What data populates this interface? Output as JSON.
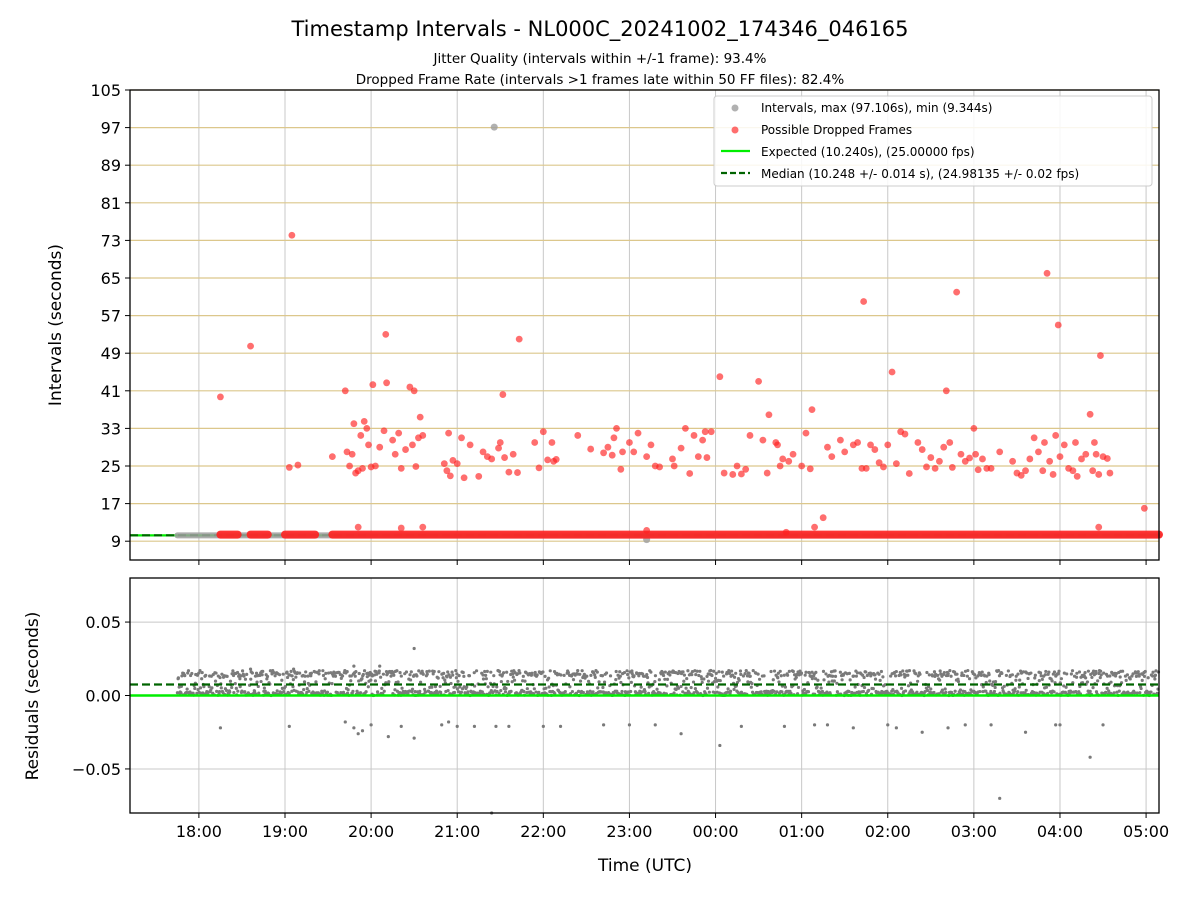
{
  "figure": {
    "title": "Timestamp Intervals - NL000C_20241002_174346_046165",
    "subtitle_line1": "Jitter Quality (intervals within +/-1 frame): 93.4%",
    "subtitle_line2": "Dropped Frame Rate (intervals >1 frames late within 50 FF files): 82.4%",
    "xlabel": "Time (UTC)",
    "x_ticks": [
      "18:00",
      "19:00",
      "20:00",
      "21:00",
      "22:00",
      "23:00",
      "00:00",
      "01:00",
      "02:00",
      "03:00",
      "04:00",
      "05:00"
    ]
  },
  "chart_data": [
    {
      "type": "scatter",
      "ylabel": "Intervals (seconds)",
      "ylim": [
        5,
        105
      ],
      "xlim_hours": [
        17.2,
        29.15
      ],
      "x_ticks_hours": [
        18,
        19,
        20,
        21,
        22,
        23,
        24,
        25,
        26,
        27,
        28,
        29
      ],
      "y_ticks": [
        9,
        17,
        25,
        33,
        41,
        49,
        57,
        65,
        73,
        81,
        89,
        97,
        105
      ],
      "grid": "x gray; y goldenrod",
      "legend_position": "upper-right",
      "legend": [
        "Intervals, max (97.106s), min (9.344s)",
        "Possible Dropped Frames",
        "Expected (10.240s), (25.00000 fps)",
        "Median (10.248 +/- 0.014 s), (24.98135 +/- 0.02 fps)"
      ],
      "series": [
        {
          "name": "Intervals, max (97.106s), min (9.344s)",
          "color": "#9e9e9e",
          "baseline_range_hours": [
            17.75,
            29.15
          ],
          "baseline_value": 10.25,
          "points": [
            [
              23.2,
              9.34
            ],
            [
              21.43,
              97.1
            ]
          ]
        },
        {
          "name": "Possible Dropped Frames",
          "color": "#ff2020",
          "baseline_segments_hours": [
            [
              18.25,
              18.45
            ],
            [
              18.6,
              18.8
            ],
            [
              19.0,
              19.35
            ],
            [
              19.55,
              29.15
            ]
          ],
          "baseline_value": 10.4,
          "points": [
            [
              18.25,
              39.7
            ],
            [
              18.6,
              50.5
            ],
            [
              19.08,
              74.1
            ],
            [
              19.05,
              24.7
            ],
            [
              19.15,
              25.2
            ],
            [
              19.55,
              27.0
            ],
            [
              19.7,
              41.0
            ],
            [
              19.72,
              28.0
            ],
            [
              19.75,
              25.0
            ],
            [
              19.78,
              27.5
            ],
            [
              19.8,
              34.0
            ],
            [
              19.82,
              23.5
            ],
            [
              19.85,
              24.0
            ],
            [
              19.88,
              31.5
            ],
            [
              19.9,
              24.5
            ],
            [
              19.92,
              34.5
            ],
            [
              19.95,
              33.0
            ],
            [
              19.97,
              29.5
            ],
            [
              20.0,
              24.8
            ],
            [
              20.02,
              42.3
            ],
            [
              20.05,
              25.0
            ],
            [
              20.1,
              29.0
            ],
            [
              20.15,
              32.5
            ],
            [
              20.17,
              53.0
            ],
            [
              20.18,
              42.7
            ],
            [
              20.25,
              30.5
            ],
            [
              20.28,
              27.5
            ],
            [
              20.32,
              32.0
            ],
            [
              20.35,
              24.5
            ],
            [
              20.4,
              28.5
            ],
            [
              20.45,
              41.8
            ],
            [
              20.48,
              29.5
            ],
            [
              20.5,
              41.0
            ],
            [
              20.52,
              24.9
            ],
            [
              20.55,
              31.0
            ],
            [
              20.57,
              35.4
            ],
            [
              20.6,
              31.5
            ],
            [
              20.6,
              12.0
            ],
            [
              19.85,
              12.0
            ],
            [
              20.35,
              11.8
            ],
            [
              20.85,
              25.5
            ],
            [
              20.88,
              24.0
            ],
            [
              20.9,
              32.0
            ],
            [
              20.92,
              22.9
            ],
            [
              20.95,
              26.2
            ],
            [
              21.0,
              25.5
            ],
            [
              21.05,
              31.0
            ],
            [
              21.08,
              22.5
            ],
            [
              21.15,
              29.5
            ],
            [
              21.25,
              22.8
            ],
            [
              21.3,
              28.0
            ],
            [
              21.35,
              27.0
            ],
            [
              21.4,
              26.5
            ],
            [
              21.48,
              28.8
            ],
            [
              21.5,
              30.0
            ],
            [
              21.53,
              40.2
            ],
            [
              21.55,
              26.8
            ],
            [
              21.6,
              23.7
            ],
            [
              21.65,
              27.5
            ],
            [
              21.7,
              23.6
            ],
            [
              21.72,
              52.0
            ],
            [
              21.9,
              30.0
            ],
            [
              21.95,
              24.6
            ],
            [
              22.0,
              32.3
            ],
            [
              22.05,
              26.3
            ],
            [
              22.1,
              30.0
            ],
            [
              22.12,
              26.0
            ],
            [
              22.15,
              26.4
            ],
            [
              22.4,
              31.5
            ],
            [
              22.55,
              28.6
            ],
            [
              22.7,
              27.8
            ],
            [
              22.75,
              29.0
            ],
            [
              22.8,
              27.3
            ],
            [
              22.82,
              31.0
            ],
            [
              22.85,
              33.0
            ],
            [
              22.9,
              24.3
            ],
            [
              22.92,
              28.0
            ],
            [
              23.0,
              30.0
            ],
            [
              23.05,
              28.0
            ],
            [
              23.1,
              32.0
            ],
            [
              23.2,
              27.0
            ],
            [
              23.25,
              29.5
            ],
            [
              23.3,
              25.0
            ],
            [
              23.35,
              24.8
            ],
            [
              23.5,
              26.5
            ],
            [
              23.52,
              25.0
            ],
            [
              23.6,
              28.8
            ],
            [
              23.65,
              33.0
            ],
            [
              23.7,
              23.4
            ],
            [
              23.75,
              31.5
            ],
            [
              23.8,
              27.0
            ],
            [
              23.85,
              30.5
            ],
            [
              23.88,
              32.3
            ],
            [
              23.9,
              26.8
            ],
            [
              23.95,
              32.3
            ],
            [
              24.05,
              44.0
            ],
            [
              24.1,
              23.5
            ],
            [
              24.2,
              23.2
            ],
            [
              24.25,
              25.0
            ],
            [
              24.3,
              23.3
            ],
            [
              24.35,
              24.3
            ],
            [
              24.4,
              31.5
            ],
            [
              24.5,
              43.0
            ],
            [
              24.55,
              30.5
            ],
            [
              24.6,
              23.5
            ],
            [
              24.62,
              35.9
            ],
            [
              24.7,
              30.0
            ],
            [
              24.72,
              29.5
            ],
            [
              24.75,
              25.0
            ],
            [
              24.78,
              26.5
            ],
            [
              24.85,
              26.0
            ],
            [
              24.9,
              27.5
            ],
            [
              25.0,
              25.0
            ],
            [
              25.05,
              32.0
            ],
            [
              25.1,
              24.4
            ],
            [
              25.12,
              37.0
            ],
            [
              25.15,
              12.0
            ],
            [
              25.25,
              14.0
            ],
            [
              25.3,
              29.0
            ],
            [
              25.35,
              27.0
            ],
            [
              25.45,
              30.5
            ],
            [
              25.5,
              28.0
            ],
            [
              25.6,
              29.5
            ],
            [
              25.65,
              30.0
            ],
            [
              25.7,
              24.5
            ],
            [
              25.72,
              60.0
            ],
            [
              25.75,
              24.5
            ],
            [
              25.8,
              29.5
            ],
            [
              25.85,
              28.5
            ],
            [
              25.9,
              25.7
            ],
            [
              25.95,
              24.8
            ],
            [
              26.0,
              29.5
            ],
            [
              26.05,
              45.0
            ],
            [
              26.1,
              25.5
            ],
            [
              26.15,
              32.3
            ],
            [
              26.2,
              31.8
            ],
            [
              26.25,
              23.4
            ],
            [
              26.35,
              30.0
            ],
            [
              26.4,
              28.5
            ],
            [
              26.45,
              24.8
            ],
            [
              26.5,
              26.8
            ],
            [
              26.55,
              24.5
            ],
            [
              26.6,
              26.0
            ],
            [
              26.65,
              29.0
            ],
            [
              26.68,
              41.0
            ],
            [
              26.72,
              30.0
            ],
            [
              26.75,
              24.7
            ],
            [
              26.8,
              62.0
            ],
            [
              26.85,
              27.5
            ],
            [
              26.9,
              26.0
            ],
            [
              26.95,
              26.7
            ],
            [
              27.0,
              33.0
            ],
            [
              27.02,
              27.5
            ],
            [
              27.05,
              24.2
            ],
            [
              27.1,
              26.5
            ],
            [
              27.15,
              24.5
            ],
            [
              27.2,
              24.5
            ],
            [
              27.3,
              28.0
            ],
            [
              27.45,
              26.0
            ],
            [
              27.5,
              23.5
            ],
            [
              27.55,
              23.0
            ],
            [
              27.6,
              24.0
            ],
            [
              27.65,
              26.5
            ],
            [
              27.7,
              31.0
            ],
            [
              27.75,
              28.0
            ],
            [
              27.8,
              24.0
            ],
            [
              27.82,
              30.0
            ],
            [
              27.85,
              66.0
            ],
            [
              27.88,
              26.0
            ],
            [
              27.92,
              23.2
            ],
            [
              27.95,
              31.5
            ],
            [
              27.98,
              55.0
            ],
            [
              28.0,
              27.0
            ],
            [
              28.05,
              29.5
            ],
            [
              28.1,
              24.5
            ],
            [
              28.15,
              24.0
            ],
            [
              28.18,
              30.0
            ],
            [
              28.2,
              22.8
            ],
            [
              28.25,
              26.5
            ],
            [
              28.3,
              27.5
            ],
            [
              28.35,
              36.0
            ],
            [
              28.38,
              24.0
            ],
            [
              28.4,
              30.0
            ],
            [
              28.42,
              27.5
            ],
            [
              28.45,
              23.2
            ],
            [
              28.47,
              48.5
            ],
            [
              28.5,
              27.0
            ],
            [
              28.55,
              26.6
            ],
            [
              28.58,
              23.5
            ],
            [
              28.45,
              12.0
            ],
            [
              28.98,
              16.0
            ],
            [
              23.2,
              11.3
            ],
            [
              24.82,
              10.9
            ]
          ]
        },
        {
          "name": "Expected (10.240s), (25.00000 fps)",
          "color": "#00ee00",
          "style": "solid",
          "value": 10.24
        },
        {
          "name": "Median (10.248 +/- 0.014 s), (24.98135 +/- 0.02 fps)",
          "color": "#006400",
          "style": "dashed",
          "value": 10.248
        }
      ]
    },
    {
      "type": "scatter",
      "ylabel": "Residuals (seconds)",
      "ylim": [
        -0.08,
        0.08
      ],
      "xlim_hours": [
        17.2,
        29.15
      ],
      "y_ticks": [
        -0.05,
        0.0,
        0.05
      ],
      "y_tick_labels": [
        "−0.05",
        "0.00",
        "0.05"
      ],
      "expected_residual": 0.0,
      "median_residual": 0.0075,
      "band_low": 0.0,
      "band_high": 0.017,
      "scatter_range_hours": [
        17.75,
        29.15
      ],
      "series_color": "#7a7a7a",
      "outliers": [
        [
          18.25,
          -0.022
        ],
        [
          19.05,
          -0.021
        ],
        [
          19.7,
          -0.018
        ],
        [
          19.8,
          -0.022
        ],
        [
          19.85,
          -0.026
        ],
        [
          19.9,
          -0.024
        ],
        [
          20.0,
          -0.02
        ],
        [
          20.2,
          -0.028
        ],
        [
          20.35,
          -0.021
        ],
        [
          20.5,
          -0.029
        ],
        [
          20.5,
          0.032
        ],
        [
          20.82,
          -0.02
        ],
        [
          20.9,
          -0.018
        ],
        [
          21.0,
          -0.021
        ],
        [
          21.2,
          -0.021
        ],
        [
          21.4,
          -0.08
        ],
        [
          21.45,
          -0.021
        ],
        [
          21.6,
          -0.021
        ],
        [
          22.0,
          -0.021
        ],
        [
          22.2,
          -0.021
        ],
        [
          22.7,
          -0.02
        ],
        [
          23.0,
          -0.02
        ],
        [
          23.3,
          -0.02
        ],
        [
          23.6,
          -0.026
        ],
        [
          24.05,
          -0.034
        ],
        [
          24.3,
          -0.021
        ],
        [
          24.8,
          -0.021
        ],
        [
          25.3,
          -0.02
        ],
        [
          25.6,
          -0.022
        ],
        [
          26.0,
          -0.02
        ],
        [
          26.4,
          -0.025
        ],
        [
          26.7,
          -0.022
        ],
        [
          26.9,
          -0.02
        ],
        [
          27.2,
          -0.02
        ],
        [
          27.3,
          -0.07
        ],
        [
          27.6,
          -0.025
        ],
        [
          27.95,
          -0.02
        ],
        [
          28.0,
          -0.02
        ],
        [
          28.35,
          -0.042
        ],
        [
          28.5,
          -0.02
        ],
        [
          18.6,
          0.018
        ],
        [
          19.1,
          0.018
        ],
        [
          19.8,
          0.02
        ],
        [
          20.1,
          0.02
        ],
        [
          25.15,
          -0.02
        ],
        [
          26.1,
          -0.022
        ]
      ]
    }
  ]
}
